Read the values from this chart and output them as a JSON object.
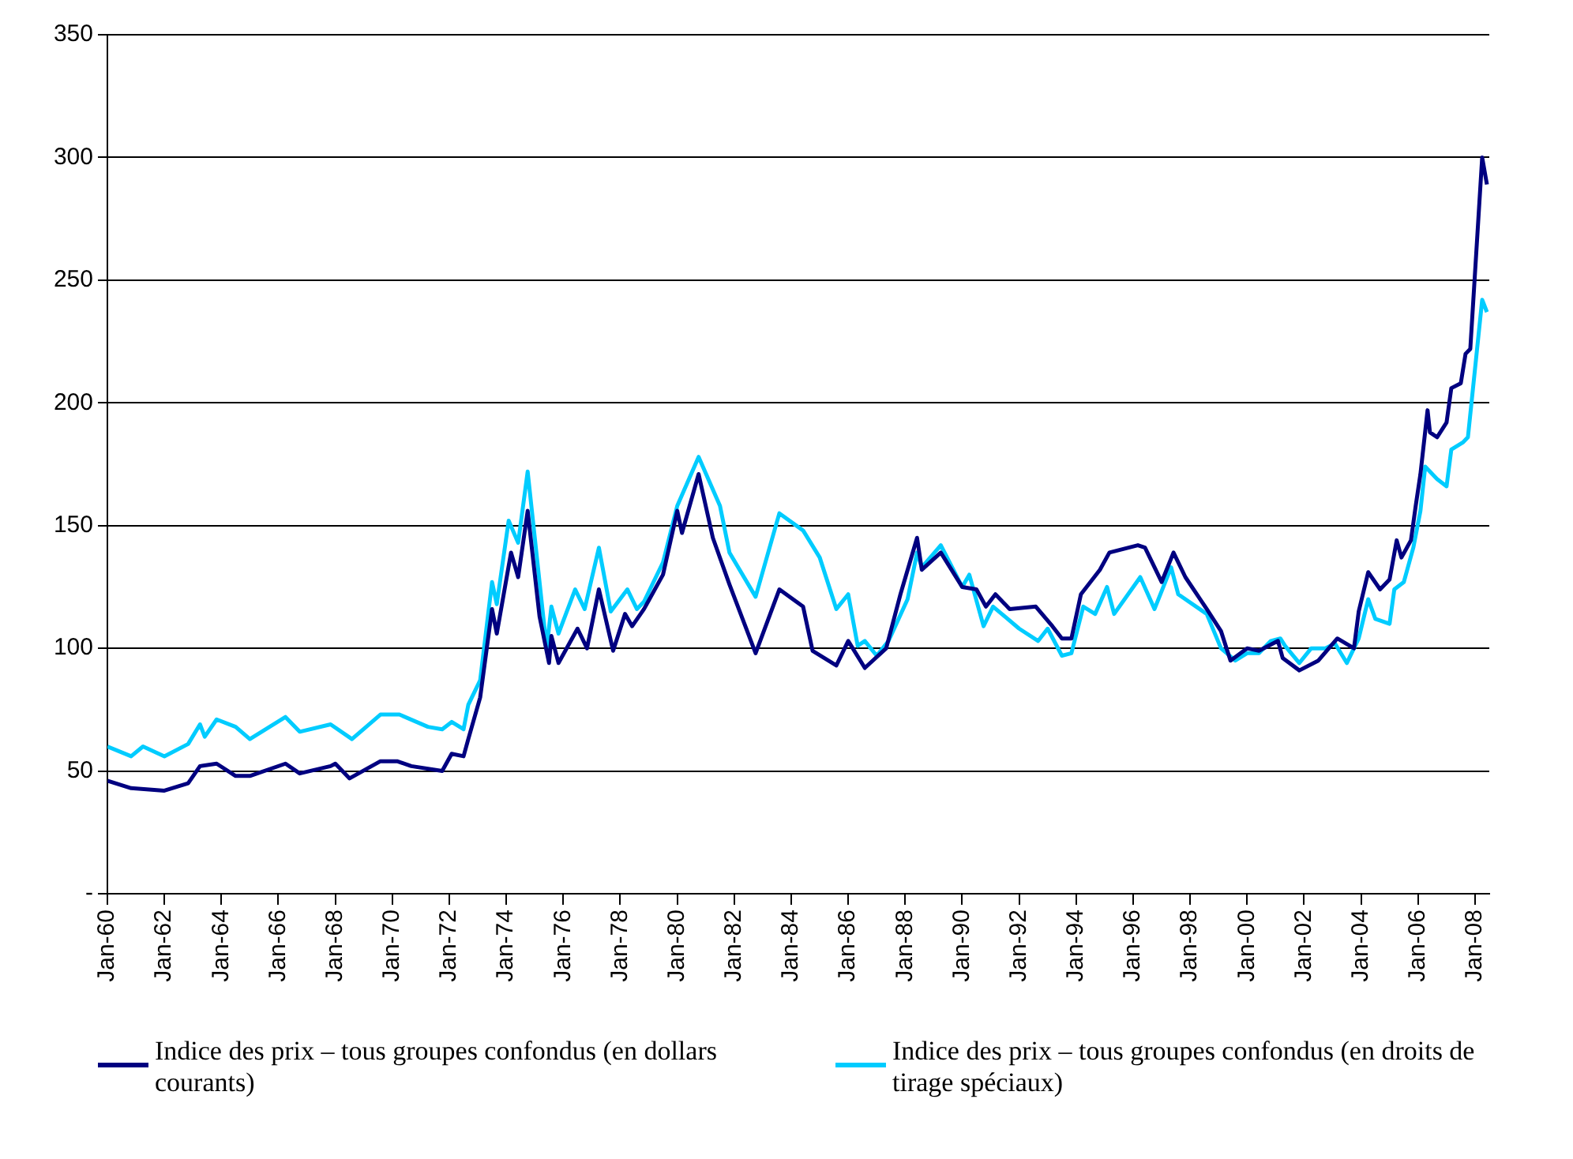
{
  "chart_data": {
    "type": "line",
    "x": [
      "1960-01",
      "1960-11",
      "1962-01",
      "1962-11",
      "1963-04",
      "1963-11",
      "1964-07",
      "1965-01",
      "1966-04",
      "1966-10",
      "1967-11",
      "1968-01",
      "1968-07",
      "1969-08",
      "1970-03",
      "1970-09",
      "1971-10",
      "1972-02",
      "1972-07",
      "1972-09",
      "1973-02",
      "1973-07",
      "1973-09",
      "1974-03",
      "1974-06",
      "1974-10",
      "1975-03",
      "1975-07",
      "1975-08",
      "1975-11",
      "1976-07",
      "1976-11",
      "1977-04",
      "1977-10",
      "1978-03",
      "1978-06",
      "1978-11",
      "1979-07",
      "1980-01",
      "1980-03",
      "1980-10",
      "1981-04",
      "1981-11",
      "1982-10",
      "1983-08",
      "1984-06",
      "1984-10",
      "1985-08",
      "1986-01",
      "1986-08",
      "1987-05",
      "1987-11",
      "1988-06",
      "1988-08",
      "1989-04",
      "1990-01",
      "1990-07",
      "1990-11",
      "1991-03",
      "1991-09",
      "1992-08",
      "1993-03",
      "1993-07",
      "1993-11",
      "1994-03",
      "1994-11",
      "1995-03",
      "1996-03",
      "1996-06",
      "1997-01",
      "1997-06",
      "1997-11",
      "1998-08",
      "1999-02",
      "1999-06",
      "2000-01",
      "2000-06",
      "2001-02",
      "2001-04",
      "2001-11",
      "2002-07",
      "2003-03",
      "2003-10",
      "2003-12",
      "2004-04",
      "2004-09",
      "2005-01",
      "2005-04",
      "2005-06",
      "2005-10",
      "2005-12",
      "2006-02",
      "2006-05",
      "2006-06",
      "2006-09",
      "2007-01",
      "2007-03",
      "2007-07",
      "2007-09",
      "2007-11",
      "2008-04",
      "2008-06"
    ],
    "series": [
      {
        "name": "Indice des prix – tous groupes confondus (en dollars courants)",
        "color": "#000080",
        "values": [
          46,
          43,
          42,
          45,
          52,
          53,
          48,
          48,
          53,
          49,
          52,
          53,
          47,
          54,
          54,
          52,
          50,
          57,
          56,
          63,
          80,
          116,
          106,
          139,
          129,
          156,
          113,
          94,
          105,
          94,
          108,
          100,
          124,
          99,
          114,
          109,
          116,
          130,
          156,
          147,
          171,
          145,
          126,
          98,
          124,
          117,
          99,
          93,
          103,
          92,
          100,
          122,
          145,
          132,
          139,
          125,
          124,
          117,
          122,
          116,
          117,
          109,
          104,
          104,
          122,
          132,
          139,
          142,
          141,
          127,
          139,
          129,
          116,
          107,
          95,
          100,
          99,
          103,
          96,
          91,
          95,
          104,
          100,
          115,
          131,
          124,
          128,
          144,
          137,
          144,
          158,
          171,
          197,
          188,
          186,
          192,
          206,
          208,
          220,
          222,
          300,
          289
        ]
      },
      {
        "name": "Indice des prix – tous groupes confondus (en droits de tirage spéciaux)",
        "color": "#00ccff",
        "x": [
          "1960-01",
          "1960-11",
          "1961-04",
          "1962-01",
          "1962-11",
          "1963-04",
          "1963-06",
          "1963-11",
          "1964-07",
          "1965-01",
          "1966-04",
          "1966-10",
          "1967-11",
          "1968-08",
          "1969-08",
          "1970-04",
          "1971-04",
          "1971-10",
          "1972-02",
          "1972-07",
          "1972-09",
          "1973-02",
          "1973-07",
          "1973-09",
          "1974-02",
          "1974-06",
          "1974-10",
          "1975-06",
          "1975-08",
          "1975-11",
          "1976-06",
          "1976-10",
          "1977-04",
          "1977-09",
          "1978-04",
          "1978-08",
          "1978-11",
          "1979-07",
          "1980-01",
          "1980-10",
          "1981-07",
          "1981-11",
          "1982-10",
          "1983-08",
          "1984-06",
          "1985-01",
          "1985-08",
          "1986-01",
          "1986-05",
          "1986-08",
          "1987-01",
          "1987-06",
          "1988-02",
          "1988-06",
          "1988-08",
          "1989-04",
          "1990-01",
          "1990-04",
          "1990-10",
          "1991-02",
          "1992-01",
          "1992-09",
          "1993-01",
          "1993-07",
          "1993-11",
          "1994-04",
          "1994-09",
          "1995-02",
          "1995-05",
          "1996-04",
          "1996-10",
          "1997-05",
          "1997-08",
          "1998-08",
          "1999-02",
          "1999-08",
          "2000-01",
          "2000-06",
          "2000-11",
          "2001-03",
          "2001-05",
          "2001-11",
          "2002-04",
          "2002-10",
          "2003-02",
          "2003-07",
          "2003-12",
          "2004-04",
          "2004-07",
          "2005-01",
          "2005-03",
          "2005-07",
          "2005-11",
          "2006-02",
          "2006-04",
          "2006-09",
          "2007-01",
          "2007-03",
          "2007-08",
          "2007-10",
          "2008-04",
          "2008-06"
        ],
        "values": [
          60,
          56,
          60,
          56,
          61,
          69,
          64,
          71,
          68,
          63,
          72,
          66,
          69,
          63,
          73,
          73,
          68,
          67,
          70,
          67,
          77,
          87,
          127,
          118,
          152,
          143,
          172,
          100,
          117,
          106,
          124,
          116,
          141,
          115,
          124,
          116,
          119,
          135,
          158,
          178,
          158,
          139,
          121,
          155,
          148,
          137,
          116,
          122,
          101,
          103,
          97,
          103,
          120,
          139,
          133,
          142,
          125,
          130,
          109,
          117,
          108,
          103,
          108,
          97,
          98,
          117,
          114,
          125,
          114,
          129,
          116,
          133,
          122,
          114,
          100,
          95,
          98,
          98,
          103,
          104,
          101,
          94,
          100,
          100,
          102,
          94,
          104,
          120,
          112,
          110,
          124,
          127,
          141,
          156,
          174,
          169,
          166,
          181,
          184,
          186,
          242,
          237
        ]
      }
    ],
    "xlim": [
      "1960-01",
      "2008-07"
    ],
    "xticks": [
      {
        "value": "1960-01",
        "label": "Jan-60"
      },
      {
        "value": "1962-01",
        "label": "Jan-62"
      },
      {
        "value": "1964-01",
        "label": "Jan-64"
      },
      {
        "value": "1966-01",
        "label": "Jan-66"
      },
      {
        "value": "1968-01",
        "label": "Jan-68"
      },
      {
        "value": "1970-01",
        "label": "Jan-70"
      },
      {
        "value": "1972-01",
        "label": "Jan-72"
      },
      {
        "value": "1974-01",
        "label": "Jan-74"
      },
      {
        "value": "1976-01",
        "label": "Jan-76"
      },
      {
        "value": "1978-01",
        "label": "Jan-78"
      },
      {
        "value": "1980-01",
        "label": "Jan-80"
      },
      {
        "value": "1982-01",
        "label": "Jan-82"
      },
      {
        "value": "1984-01",
        "label": "Jan-84"
      },
      {
        "value": "1986-01",
        "label": "Jan-86"
      },
      {
        "value": "1988-01",
        "label": "Jan-88"
      },
      {
        "value": "1990-01",
        "label": "Jan-90"
      },
      {
        "value": "1992-01",
        "label": "Jan-92"
      },
      {
        "value": "1994-01",
        "label": "Jan-94"
      },
      {
        "value": "1996-01",
        "label": "Jan-96"
      },
      {
        "value": "1998-01",
        "label": "Jan-98"
      },
      {
        "value": "2000-01",
        "label": "Jan-00"
      },
      {
        "value": "2002-01",
        "label": "Jan-02"
      },
      {
        "value": "2004-01",
        "label": "Jan-04"
      },
      {
        "value": "2006-01",
        "label": "Jan-06"
      },
      {
        "value": "2008-01",
        "label": "Jan-08"
      }
    ],
    "ylim": [
      0,
      350
    ],
    "yticks": [
      {
        "value": 0,
        "label": "-"
      },
      50,
      100,
      150,
      200,
      250,
      300,
      350
    ],
    "grid": "y",
    "legend": "bottom",
    "marker": "none",
    "line_style": "solid"
  }
}
